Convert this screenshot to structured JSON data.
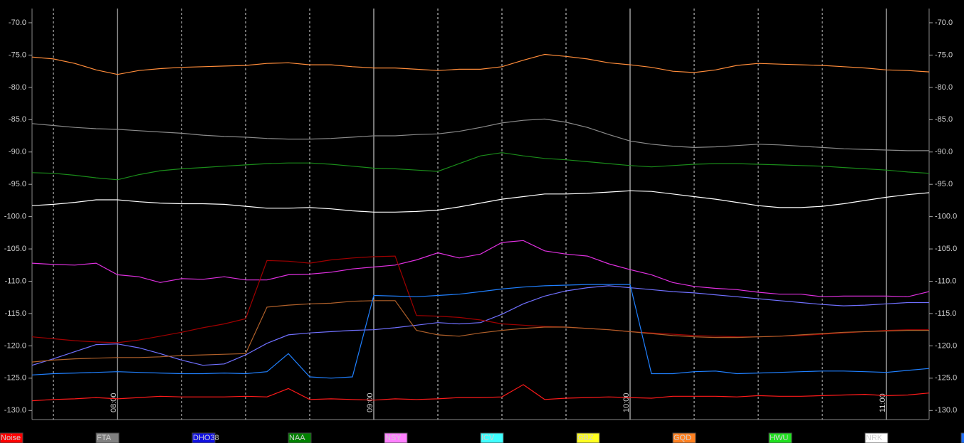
{
  "chart_data": {
    "type": "line",
    "x": [
      "07:40",
      "07:45",
      "07:50",
      "07:55",
      "08:00",
      "08:05",
      "08:10",
      "08:15",
      "08:20",
      "08:25",
      "08:30",
      "08:35",
      "08:40",
      "08:45",
      "08:50",
      "08:55",
      "09:00",
      "09:05",
      "09:10",
      "09:15",
      "09:20",
      "09:25",
      "09:30",
      "09:35",
      "09:40",
      "09:45",
      "09:50",
      "09:55",
      "10:00",
      "10:05",
      "10:10",
      "10:15",
      "10:20",
      "10:25",
      "10:30",
      "10:35",
      "10:40",
      "10:45",
      "10:50",
      "10:55",
      "11:00",
      "11:05",
      "11:10"
    ],
    "xlim": [
      "07:40",
      "11:10"
    ],
    "xticks": [
      "08:00",
      "09:00",
      "10:00",
      "11:00"
    ],
    "x_minor_ticks": [
      "07:45",
      "08:15",
      "08:30",
      "08:45",
      "09:15",
      "09:30",
      "09:45",
      "10:15",
      "10:30",
      "10:45"
    ],
    "ylim": [
      -131.4,
      -67.8
    ],
    "yticks": [
      {
        "value": -70,
        "label": "-70.0"
      },
      {
        "value": -75,
        "label": "-75.0"
      },
      {
        "value": -80,
        "label": "-80.0"
      },
      {
        "value": -85,
        "label": "-85.0"
      },
      {
        "value": -90,
        "label": "-90.0"
      },
      {
        "value": -95,
        "label": "-95.0"
      },
      {
        "value": -100,
        "label": "-100.0"
      },
      {
        "value": -105,
        "label": "-105.0"
      },
      {
        "value": -110,
        "label": "-110.0"
      },
      {
        "value": -115,
        "label": "-115.0"
      },
      {
        "value": -120,
        "label": "-120.0"
      },
      {
        "value": -125,
        "label": "-125.0"
      },
      {
        "value": -130,
        "label": "-130.0"
      }
    ],
    "series": [
      {
        "color": "#ff8c3a",
        "values": [
          -75.3,
          -75.6,
          -76.3,
          -77.3,
          -78.0,
          -77.4,
          -77.1,
          -76.9,
          -76.8,
          -76.7,
          -76.6,
          -76.3,
          -76.2,
          -76.5,
          -76.5,
          -76.8,
          -77.0,
          -77.0,
          -77.2,
          -77.4,
          -77.2,
          -77.2,
          -76.8,
          -75.8,
          -74.9,
          -75.2,
          -75.6,
          -76.2,
          -76.5,
          -76.9,
          -77.5,
          -77.7,
          -77.3,
          -76.6,
          -76.3,
          -76.4,
          -76.5,
          -76.6,
          -76.8,
          -77.0,
          -77.3,
          -77.4,
          -77.6
        ]
      },
      {
        "color": "#8a8a8a",
        "values": [
          -85.6,
          -85.9,
          -86.2,
          -86.4,
          -86.5,
          -86.7,
          -86.9,
          -87.1,
          -87.4,
          -87.6,
          -87.7,
          -87.9,
          -88.0,
          -88.0,
          -87.9,
          -87.7,
          -87.5,
          -87.5,
          -87.3,
          -87.2,
          -86.8,
          -86.2,
          -85.5,
          -85.1,
          -84.9,
          -85.4,
          -86.2,
          -87.3,
          -88.3,
          -88.8,
          -89.1,
          -89.3,
          -89.2,
          -89.0,
          -88.8,
          -88.9,
          -89.1,
          -89.3,
          -89.5,
          -89.6,
          -89.7,
          -89.8,
          -89.8
        ]
      },
      {
        "color": "#1a8c1a",
        "values": [
          -93.2,
          -93.3,
          -93.6,
          -94.0,
          -94.3,
          -93.5,
          -92.9,
          -92.6,
          -92.4,
          -92.2,
          -92.0,
          -91.8,
          -91.7,
          -91.7,
          -91.9,
          -92.2,
          -92.5,
          -92.6,
          -92.8,
          -93.0,
          -91.8,
          -90.6,
          -90.1,
          -90.6,
          -91.0,
          -91.2,
          -91.5,
          -91.8,
          -92.1,
          -92.3,
          -92.1,
          -91.9,
          -91.8,
          -91.8,
          -91.9,
          -92.0,
          -92.1,
          -92.2,
          -92.4,
          -92.6,
          -92.8,
          -93.1,
          -93.3
        ]
      },
      {
        "color": "#ffffff",
        "values": [
          -98.3,
          -98.1,
          -97.8,
          -97.4,
          -97.4,
          -97.7,
          -97.9,
          -98.0,
          -98.0,
          -98.1,
          -98.4,
          -98.7,
          -98.7,
          -98.6,
          -98.8,
          -99.1,
          -99.3,
          -99.3,
          -99.2,
          -99.0,
          -98.5,
          -97.9,
          -97.3,
          -96.9,
          -96.5,
          -96.5,
          -96.4,
          -96.2,
          -96.0,
          -96.1,
          -96.5,
          -96.9,
          -97.3,
          -97.8,
          -98.3,
          -98.6,
          -98.6,
          -98.4,
          -98.0,
          -97.5,
          -97.0,
          -96.6,
          -96.3
        ]
      },
      {
        "color": "#e030e0",
        "values": [
          -107.2,
          -107.4,
          -107.5,
          -107.2,
          -109.0,
          -109.3,
          -110.2,
          -109.6,
          -109.7,
          -109.3,
          -109.8,
          -109.8,
          -109.0,
          -108.9,
          -108.6,
          -108.1,
          -107.8,
          -107.5,
          -106.7,
          -105.6,
          -106.4,
          -105.8,
          -104.0,
          -103.7,
          -105.3,
          -105.8,
          -106.1,
          -107.3,
          -108.2,
          -109.0,
          -110.2,
          -110.8,
          -111.1,
          -111.3,
          -111.7,
          -112.0,
          -112.0,
          -112.4,
          -112.3,
          -112.3,
          -112.3,
          -112.4,
          -111.6
        ]
      },
      {
        "color": "#7070ff",
        "values": [
          -123.0,
          -122.0,
          -120.9,
          -119.8,
          -119.7,
          -120.3,
          -121.2,
          -122.2,
          -123.0,
          -122.8,
          -121.4,
          -119.6,
          -118.3,
          -118.0,
          -117.8,
          -117.6,
          -117.5,
          -117.2,
          -116.8,
          -116.4,
          -116.6,
          -116.4,
          -115.1,
          -113.5,
          -112.3,
          -111.5,
          -111.0,
          -110.7,
          -111.0,
          -111.3,
          -111.6,
          -111.8,
          -112.1,
          -112.4,
          -112.7,
          -113.0,
          -113.3,
          -113.6,
          -113.8,
          -113.7,
          -113.5,
          -113.3,
          -113.3
        ]
      },
      {
        "color": "#a00000",
        "values": [
          -118.6,
          -118.9,
          -119.2,
          -119.4,
          -119.5,
          -119.1,
          -118.5,
          -117.9,
          -117.2,
          -116.6,
          -115.8,
          -106.8,
          -106.9,
          -107.2,
          -106.7,
          -106.4,
          -106.2,
          -106.1,
          -115.3,
          -115.4,
          -115.6,
          -116.0,
          -116.6,
          -116.8,
          -117.0,
          -117.1,
          -117.3,
          -117.5,
          -117.8,
          -118.0,
          -118.2,
          -118.4,
          -118.5,
          -118.6,
          -118.6,
          -118.5,
          -118.4,
          -118.2,
          -118.0,
          -117.8,
          -117.6,
          -117.5,
          -117.5
        ]
      },
      {
        "color": "#b0602a",
        "values": [
          -122.5,
          -122.2,
          -122.0,
          -121.9,
          -121.8,
          -121.8,
          -121.7,
          -121.5,
          -121.4,
          -121.3,
          -121.2,
          -114.0,
          -113.7,
          -113.5,
          -113.4,
          -113.1,
          -113.0,
          -113.0,
          -117.6,
          -118.3,
          -118.5,
          -118.0,
          -117.6,
          -117.3,
          -117.1,
          -117.1,
          -117.3,
          -117.5,
          -117.8,
          -118.1,
          -118.4,
          -118.6,
          -118.7,
          -118.7,
          -118.6,
          -118.5,
          -118.3,
          -118.1,
          -117.9,
          -117.8,
          -117.7,
          -117.6,
          -117.6
        ]
      },
      {
        "color": "#2080ff",
        "values": [
          -124.5,
          -124.3,
          -124.2,
          -124.1,
          -124.0,
          -124.1,
          -124.2,
          -124.3,
          -124.3,
          -124.2,
          -124.3,
          -124.0,
          -121.2,
          -124.8,
          -125.0,
          -124.8,
          -112.2,
          -112.3,
          -112.4,
          -112.2,
          -112.0,
          -111.6,
          -111.2,
          -110.9,
          -110.7,
          -110.6,
          -110.5,
          -110.5,
          -110.5,
          -124.3,
          -124.3,
          -124.0,
          -123.9,
          -124.3,
          -124.2,
          -124.1,
          -124.0,
          -123.9,
          -123.9,
          -124.0,
          -124.1,
          -123.8,
          -123.5
        ]
      },
      {
        "color": "#ff1a1a",
        "values": [
          -128.5,
          -128.3,
          -128.2,
          -128.0,
          -128.2,
          -128.0,
          -127.8,
          -127.9,
          -127.9,
          -127.9,
          -127.8,
          -127.9,
          -126.6,
          -128.3,
          -128.2,
          -128.3,
          -128.4,
          -128.2,
          -128.3,
          -128.2,
          -128.0,
          -128.0,
          -127.9,
          -126.0,
          -128.3,
          -128.1,
          -128.0,
          -127.9,
          -128.0,
          -128.1,
          -127.8,
          -127.8,
          -127.8,
          -127.9,
          -127.7,
          -127.8,
          -127.8,
          -127.7,
          -127.6,
          -127.5,
          -127.7,
          -127.6,
          -127.3
        ]
      }
    ],
    "legend": [
      {
        "name": "Noise",
        "color": "#ff0000"
      },
      {
        "name": "FTA",
        "color": "#808080"
      },
      {
        "name": "DHO38",
        "color": "#1010e0"
      },
      {
        "name": "NAA",
        "color": "#008000"
      },
      {
        "name": "NSY",
        "color": "#ff80ff"
      },
      {
        "name": "ICV",
        "color": "#40ffff"
      },
      {
        "name": "GBZ",
        "color": "#ffff20"
      },
      {
        "name": "GQD",
        "color": "#ff8020"
      },
      {
        "name": "HWU",
        "color": "#20e020"
      },
      {
        "name": "NRK",
        "color": "#ffffff"
      },
      {
        "color": "#2070ff"
      }
    ]
  }
}
